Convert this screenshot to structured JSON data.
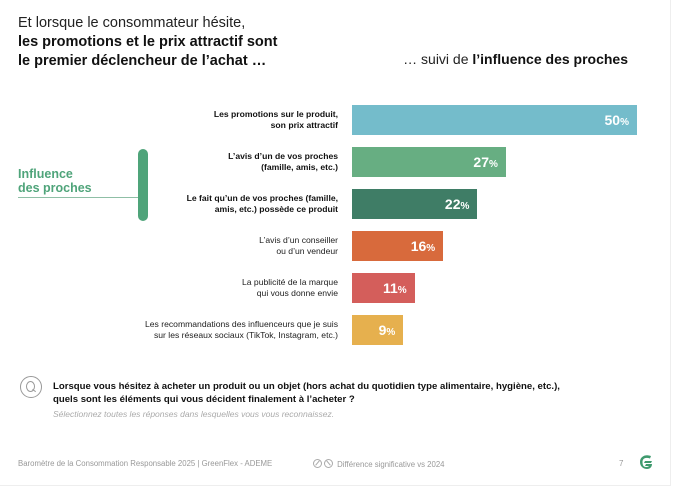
{
  "title": {
    "line1": "Et lorsque le consommateur hésite,",
    "line2": "les promotions et le prix attractif sont",
    "line3": "le premier déclencheur de l’achat …"
  },
  "subtitle": {
    "prefix": "… suivi de ",
    "bold": "l’influence des proches"
  },
  "group_label": {
    "line1": "Influence",
    "line2": "des proches"
  },
  "chart_data": {
    "type": "bar",
    "orientation": "horizontal",
    "unit": "%",
    "xlim": [
      0,
      50
    ],
    "categories": [
      "Les promotions sur le produit, son prix attractif",
      "L’avis d’un de vos proches (famille, amis, etc.)",
      "Le fait qu’un de vos proches (famille, amis, etc.) possède ce produit",
      "L’avis d’un conseiller ou d’un vendeur",
      "La publicité de la marque qui vous donne envie",
      "Les recommandations des influenceurs que je suis sur les réseaux sociaux (TikTok, Instagram, etc.)"
    ],
    "values": [
      50,
      27,
      22,
      16,
      11,
      9
    ],
    "bars": [
      {
        "label_lines": [
          "Les promotions sur le produit,",
          "son prix attractif"
        ],
        "value": 50,
        "value_text": "50",
        "pct": "%",
        "color": "#74bccb",
        "bold": true
      },
      {
        "label_lines": [
          "L’avis d’un de vos proches",
          "(famille, amis, etc.)"
        ],
        "value": 27,
        "value_text": "27",
        "pct": "%",
        "color": "#67ae82",
        "bold": true
      },
      {
        "label_lines": [
          "Le fait qu’un de vos proches (famille,",
          "amis, etc.) possède ce produit"
        ],
        "value": 22,
        "value_text": "22",
        "pct": "%",
        "color": "#3f7d66",
        "bold": true
      },
      {
        "label_lines": [
          "L’avis d’un conseiller",
          "ou d’un vendeur"
        ],
        "value": 16,
        "value_text": "16",
        "pct": "%",
        "color": "#d86a3c",
        "bold": false
      },
      {
        "label_lines": [
          "La publicité de la marque",
          "qui vous donne envie"
        ],
        "value": 11,
        "value_text": "11",
        "pct": "%",
        "color": "#d45e5b",
        "bold": false
      },
      {
        "label_lines": [
          "Les recommandations des influenceurs que je suis",
          "sur les réseaux sociaux (TikTok, Instagram, etc.)"
        ],
        "value": 9,
        "value_text": "9",
        "pct": "%",
        "color": "#e6b04e",
        "bold": false
      }
    ]
  },
  "question": {
    "icon": "question-q-icon",
    "text": "Lorsque vous hésitez à acheter un produit ou un objet (hors achat du quotidien type alimentaire, hygiène, etc.), quels sont les éléments qui vous décident finalement à l’acheter ?",
    "instruction": "Sélectionnez toutes les réponses dans lesquelles vous vous reconnaissez."
  },
  "footer": {
    "source": "Baromètre de la Consommation Responsable 2025 | GreenFlex - ADEME",
    "significance": "Différence significative vs 2024",
    "page": "7",
    "logo_color": "#3f9a6e"
  },
  "colors": {
    "accent_green": "#4fa47a"
  }
}
